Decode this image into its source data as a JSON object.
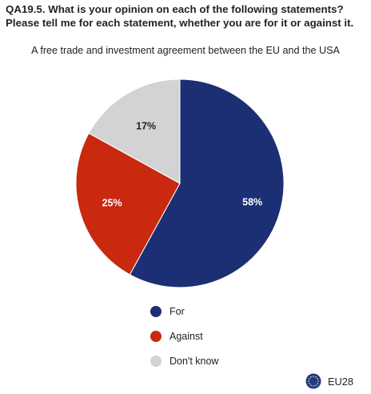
{
  "question": "QA19.5. What is your opinion on each of the following statements? Please tell me for each statement, whether you are for it or against it.",
  "subtitle": "A free trade and investment agreement between the EU and the USA",
  "footer": {
    "label": "EU28",
    "icon": "eu-flag-icon"
  },
  "chart_data": {
    "type": "pie",
    "title": "A free trade and investment agreement between the EU and the USA",
    "slices": [
      {
        "name": "For",
        "value": 58,
        "label": "58%",
        "color": "#1c2f75"
      },
      {
        "name": "Against",
        "value": 25,
        "label": "25%",
        "color": "#c8290f"
      },
      {
        "name": "Don't know",
        "value": 17,
        "label": "17%",
        "color": "#d3d3d3"
      }
    ],
    "start_angle_deg": 0,
    "direction": "clockwise",
    "legend": {
      "position": "bottom",
      "entries": [
        "For",
        "Against",
        "Don't know"
      ]
    },
    "label_colors": {
      "For": "#ffffff",
      "Against": "#ffffff",
      "Don't know": "#222222"
    }
  }
}
